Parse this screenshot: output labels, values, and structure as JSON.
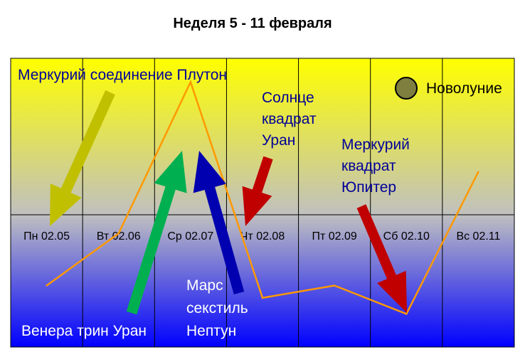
{
  "chart_data": {
    "type": "line",
    "title": "Неделя 5 - 11 февраля",
    "categories": [
      "Пн 02.05",
      "Вт 02.06",
      "Ср 02.07",
      "Чт 02.08",
      "Пт 02.09",
      "Сб 02.10",
      "Вс 02.11"
    ],
    "series": [
      {
        "x": [
          0.5,
          1.5,
          2.5,
          3.5,
          4.5,
          5.5,
          6.5
        ],
        "values": [
          -0.8,
          -0.25,
          1.35,
          -0.93,
          -0.8,
          -1.1,
          0.4
        ]
      }
    ],
    "ylim": [
      -1.45,
      1.6
    ],
    "line_color": "#ff9900",
    "background": {
      "top": "#ffff00",
      "middle": "#c0c0c0",
      "bottom": "#0000ff"
    },
    "annotations": [
      {
        "text": "Меркурий соединение Плутон",
        "color": "#000099"
      },
      {
        "text": "Солнце квадрат Уран",
        "color": "#000099"
      },
      {
        "text": "Меркурий квадрат Юпитер",
        "color": "#000099"
      },
      {
        "text": "Новолуние",
        "color": "#000000",
        "icon": "new-moon-icon"
      },
      {
        "text": "Венера трин Уран",
        "color": "#ffffff"
      },
      {
        "text": "Марс секстиль Нептун",
        "color": "#ffffff"
      }
    ],
    "arrows": [
      {
        "color": "#c0c000"
      },
      {
        "color": "#00b050"
      },
      {
        "color": "#0000b0"
      },
      {
        "color": "#c00000"
      },
      {
        "color": "#c00000"
      }
    ],
    "new_moon_color": "#7f7f3f"
  }
}
